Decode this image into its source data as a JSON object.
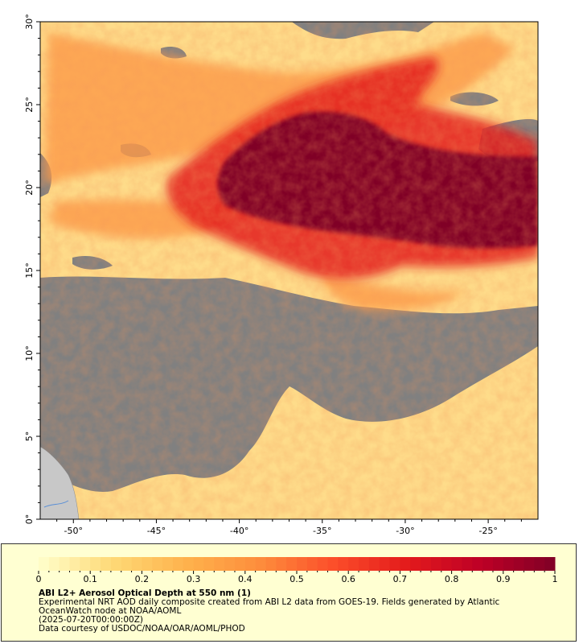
{
  "map": {
    "x_ticks": [
      "-50°",
      "-45°",
      "-40°",
      "-35°",
      "-30°",
      "-25°"
    ],
    "y_ticks": [
      "0°",
      "5°",
      "10°",
      "15°",
      "20°",
      "25°",
      "30°"
    ],
    "lon_range": [
      -52,
      -22
    ],
    "lat_range": [
      0,
      30
    ],
    "colors": {
      "no_data": "#808080",
      "land": "#c8c8c8",
      "background": "#ffffff"
    }
  },
  "colorbar": {
    "ticks": [
      "0",
      "0.1",
      "0.2",
      "0.3",
      "0.4",
      "0.5",
      "0.6",
      "0.7",
      "0.8",
      "0.9",
      "1"
    ],
    "range": [
      0,
      1
    ],
    "colors": [
      "#ffffcc",
      "#fed976",
      "#feb24c",
      "#fd8d3c",
      "#fc4e2a",
      "#e31a1c",
      "#bd0026",
      "#800026"
    ]
  },
  "caption": {
    "title": "ABI L2+ Aerosol Optical Depth at 550 nm (1)",
    "description": "Experimental NRT AOD daily composite created from ABI L2 data from GOES-19. Fields generated by Atlantic OceanWatch node at NOAA/AOML",
    "date": "(2025-07-20T00:00:00Z)",
    "credit": "Data courtesy of USDOC/NOAA/OAR/AOML/PHOD"
  }
}
